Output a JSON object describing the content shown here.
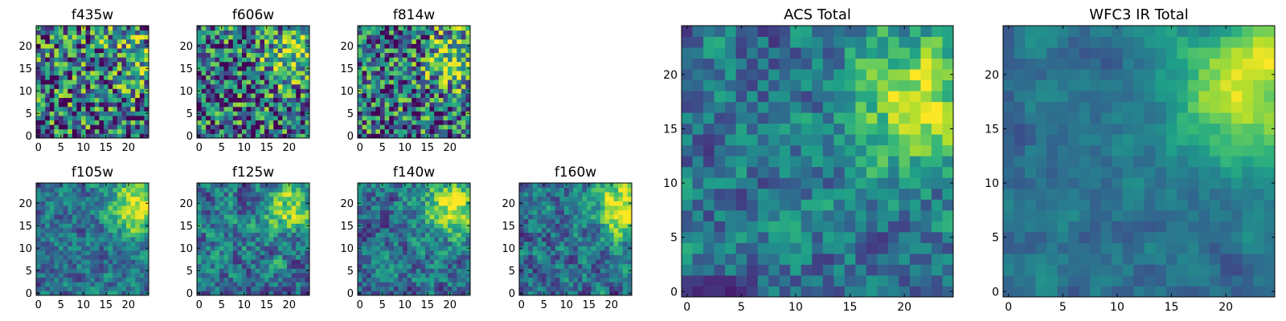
{
  "chart_data": [
    {
      "type": "heatmap",
      "title": "f435w",
      "xlim": [
        -0.5,
        24.5
      ],
      "ylim": [
        -0.5,
        24.5
      ],
      "xticks": [
        0,
        5,
        10,
        15,
        20
      ],
      "yticks": [
        0,
        5,
        10,
        15,
        20
      ],
      "grid": false,
      "colormap": "viridis",
      "seed": 11,
      "hotspot": {
        "x": 20,
        "y": 18
      },
      "hot": 0.25,
      "noise": 0.65,
      "smooth": 0
    },
    {
      "type": "heatmap",
      "title": "f606w",
      "xlim": [
        -0.5,
        24.5
      ],
      "ylim": [
        -0.5,
        24.5
      ],
      "xticks": [
        0,
        5,
        10,
        15,
        20
      ],
      "yticks": [
        0,
        5,
        10,
        15,
        20
      ],
      "grid": false,
      "colormap": "viridis",
      "seed": 23,
      "hotspot": {
        "x": 21,
        "y": 18
      },
      "hot": 0.45,
      "noise": 0.6,
      "smooth": 0
    },
    {
      "type": "heatmap",
      "title": "f814w",
      "xlim": [
        -0.5,
        24.5
      ],
      "ylim": [
        -0.5,
        24.5
      ],
      "xticks": [
        0,
        5,
        10,
        15,
        20
      ],
      "yticks": [
        0,
        5,
        10,
        15,
        20
      ],
      "grid": false,
      "colormap": "viridis",
      "seed": 37,
      "hotspot": {
        "x": 21,
        "y": 17
      },
      "hot": 0.45,
      "noise": 0.6,
      "smooth": 0
    },
    {
      "type": "heatmap",
      "title": "f105w",
      "xlim": [
        -0.5,
        24.5
      ],
      "ylim": [
        -0.5,
        24.5
      ],
      "xticks": [
        0,
        5,
        10,
        15,
        20
      ],
      "yticks": [
        0,
        5,
        10,
        15,
        20
      ],
      "grid": false,
      "colormap": "viridis",
      "seed": 41,
      "hotspot": {
        "x": 22,
        "y": 19
      },
      "hot": 0.55,
      "noise": 0.45,
      "smooth": 1
    },
    {
      "type": "heatmap",
      "title": "f125w",
      "xlim": [
        -0.5,
        24.5
      ],
      "ylim": [
        -0.5,
        24.5
      ],
      "xticks": [
        0,
        5,
        10,
        15,
        20
      ],
      "yticks": [
        0,
        5,
        10,
        15,
        20
      ],
      "grid": false,
      "colormap": "viridis",
      "seed": 53,
      "hotspot": {
        "x": 21,
        "y": 19
      },
      "hot": 0.5,
      "noise": 0.55,
      "smooth": 1
    },
    {
      "type": "heatmap",
      "title": "f140w",
      "xlim": [
        -0.5,
        24.5
      ],
      "ylim": [
        -0.5,
        24.5
      ],
      "xticks": [
        0,
        5,
        10,
        15,
        20
      ],
      "yticks": [
        0,
        5,
        10,
        15,
        20
      ],
      "grid": false,
      "colormap": "viridis",
      "seed": 67,
      "hotspot": {
        "x": 21,
        "y": 19
      },
      "hot": 0.6,
      "noise": 0.5,
      "smooth": 1
    },
    {
      "type": "heatmap",
      "title": "f160w",
      "xlim": [
        -0.5,
        24.5
      ],
      "ylim": [
        -0.5,
        24.5
      ],
      "xticks": [
        0,
        5,
        10,
        15,
        20
      ],
      "yticks": [
        0,
        5,
        10,
        15,
        20
      ],
      "grid": false,
      "colormap": "viridis",
      "seed": 79,
      "hotspot": {
        "x": 23,
        "y": 19
      },
      "hot": 0.65,
      "noise": 0.5,
      "smooth": 1
    },
    {
      "type": "heatmap",
      "title": "ACS Total",
      "xlim": [
        -0.5,
        24.5
      ],
      "ylim": [
        -0.5,
        24.5
      ],
      "xticks": [
        0,
        5,
        10,
        15,
        20
      ],
      "yticks": [
        0,
        5,
        10,
        15,
        20
      ],
      "grid": false,
      "colormap": "viridis",
      "seed": 97,
      "hotspot": {
        "x": 21,
        "y": 18
      },
      "hot": 0.5,
      "noise": 0.45,
      "smooth": 1
    },
    {
      "type": "heatmap",
      "title": "WFC3 IR Total",
      "xlim": [
        -0.5,
        24.5
      ],
      "ylim": [
        -0.5,
        24.5
      ],
      "xticks": [
        0,
        5,
        10,
        15,
        20
      ],
      "yticks": [
        0,
        5,
        10,
        15,
        20
      ],
      "grid": false,
      "colormap": "viridis",
      "seed": 113,
      "hotspot": {
        "x": 22,
        "y": 19
      },
      "hot": 0.6,
      "noise": 0.35,
      "smooth": 2
    }
  ]
}
